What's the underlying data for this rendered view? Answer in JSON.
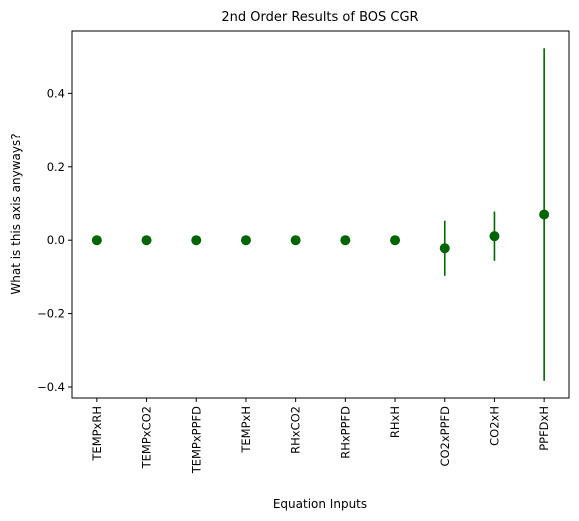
{
  "chart_data": {
    "type": "scatter",
    "title": "2nd Order Results of BOS CGR",
    "xlabel": "Equation Inputs",
    "ylabel": "What is this axis anyways?",
    "categories": [
      "TEMPxRH",
      "TEMPxCO2",
      "TEMPxPPFD",
      "TEMPxH",
      "RHxCO2",
      "RHxPPFD",
      "RHxH",
      "CO2xPPFD",
      "CO2xH",
      "PPFDxH"
    ],
    "values": [
      0.0,
      0.0,
      0.0,
      0.0,
      0.0,
      0.0,
      0.0,
      -0.022,
      0.011,
      0.07
    ],
    "errors": [
      0.0,
      0.0,
      0.0,
      0.0,
      0.0,
      0.0,
      0.0,
      0.075,
      0.067,
      0.453
    ],
    "ylim": [
      -0.43,
      0.57
    ],
    "yticks": [
      -0.4,
      -0.2,
      0.0,
      0.2,
      0.4
    ],
    "ytick_labels": [
      "−0.4",
      "−0.2",
      "0.0",
      "0.2",
      "0.4"
    ],
    "color": "#006400",
    "grid": false,
    "legend": "none"
  }
}
